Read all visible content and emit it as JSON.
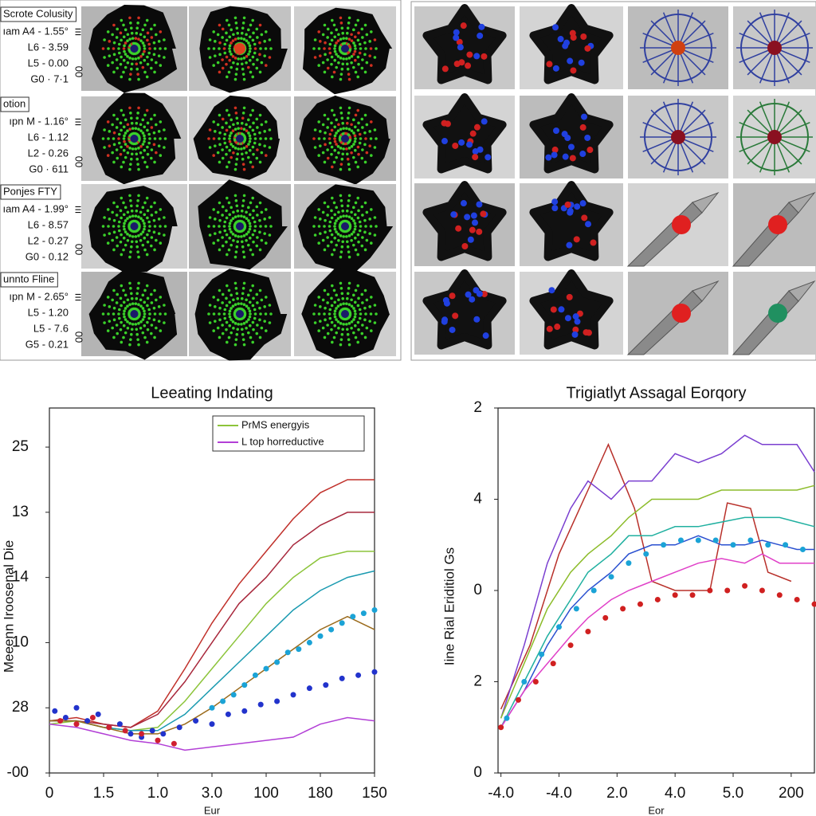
{
  "left_panel": {
    "rows": [
      {
        "title": "Scrote Colusity",
        "lines": [
          "ıam A4 - 1.55°",
          "L6 - 3.59",
          "L5 - 0.00"
        ],
        "code": "G0 · 7·1",
        "code_color": "#d02020",
        "side": [
          "ııı",
          "00"
        ]
      },
      {
        "title": "otion",
        "lines": [
          "ıpn M - 1.16°",
          "L6 - 1.12",
          "L2 - 0.26"
        ],
        "code": "G0 · 611",
        "code_color": "#d02050",
        "side": [
          "ııı",
          "00"
        ]
      },
      {
        "title": "Ponjes FTY",
        "lines": [
          "ıam A4 - 1.99°",
          "L6 - 8.57",
          "L2 - 0.27"
        ],
        "code": "G0 - 0.12",
        "code_color": "#c8b400",
        "side": [
          "ııı",
          "00"
        ]
      },
      {
        "title": "unnto Fline",
        "lines": [
          "ıpn M - 2.65°",
          "L5 - 1.20",
          "L5 - 7.6"
        ],
        "code": "G5 - 0.21",
        "code_color": "#10a0c0",
        "side": [
          "ııı",
          "00"
        ]
      }
    ]
  },
  "chart_data": [
    {
      "type": "line",
      "title": "Leeating Indating",
      "xlabel": "Eur",
      "ylabel": "Meeenn Iroosenal Die",
      "xlim": [
        0,
        6
      ],
      "ylim": [
        0,
        5.6
      ],
      "xticks": [
        0,
        {
          "value": 1,
          "label": "1.5"
        },
        {
          "value": 2,
          "label": "1.0"
        },
        {
          "value": 3,
          "label": "3.0"
        },
        {
          "value": 4,
          "label": "100"
        },
        {
          "value": 5,
          "label": "180"
        },
        {
          "value": 6,
          "label": "150"
        }
      ],
      "yticks": [
        {
          "value": 0,
          "label": "-00"
        },
        {
          "value": 1,
          "label": "28"
        },
        {
          "value": 2,
          "label": "10"
        },
        {
          "value": 3,
          "label": "14"
        },
        {
          "value": 4,
          "label": "13"
        },
        {
          "value": 5,
          "label": "25"
        }
      ],
      "legend": "upper right",
      "x": [
        0,
        0.5,
        1,
        1.5,
        2,
        2.5,
        3,
        3.5,
        4,
        4.5,
        5,
        5.5,
        6
      ],
      "series": [
        {
          "color": "#c0302a",
          "values": [
            0.8,
            0.85,
            0.75,
            0.7,
            0.95,
            1.6,
            2.3,
            2.9,
            3.4,
            3.9,
            4.3,
            4.5,
            4.5
          ]
        },
        {
          "color": "#a8283c",
          "values": [
            0.8,
            0.8,
            0.75,
            0.7,
            0.9,
            1.4,
            2.0,
            2.6,
            3.0,
            3.5,
            3.8,
            4.0,
            4.0
          ]
        },
        {
          "name": "PrMS energyis",
          "color": "#8cc43a",
          "values": [
            0.75,
            0.8,
            0.7,
            0.65,
            0.7,
            1.1,
            1.6,
            2.1,
            2.6,
            3.0,
            3.3,
            3.4,
            3.4
          ]
        },
        {
          "color": "#1a9ab0",
          "values": [
            0.8,
            0.8,
            0.7,
            0.65,
            0.65,
            0.9,
            1.3,
            1.7,
            2.1,
            2.5,
            2.8,
            3.0,
            3.1
          ]
        },
        {
          "color": "#9a6a1a",
          "values": [
            0.8,
            0.8,
            0.7,
            0.6,
            0.6,
            0.75,
            1.0,
            1.3,
            1.6,
            1.9,
            2.2,
            2.4,
            2.2
          ]
        },
        {
          "name": "L top horreductive",
          "color": "#b23fd6",
          "values": [
            0.75,
            0.7,
            0.6,
            0.5,
            0.45,
            0.35,
            0.4,
            0.45,
            0.5,
            0.55,
            0.75,
            0.85,
            0.8
          ]
        },
        {
          "type": "scatter",
          "color": "#2233cc",
          "x": [
            0.1,
            0.3,
            0.5,
            0.7,
            0.9,
            1.1,
            1.3,
            1.5,
            1.7,
            1.9,
            2.1,
            2.4,
            2.7,
            3.0,
            3.3,
            3.6,
            3.9,
            4.2,
            4.5,
            4.8,
            5.1,
            5.4,
            5.7,
            6.0
          ],
          "values": [
            0.95,
            0.85,
            1.0,
            0.8,
            0.9,
            0.7,
            0.75,
            0.6,
            0.55,
            0.65,
            0.6,
            0.7,
            0.8,
            0.75,
            0.9,
            0.95,
            1.05,
            1.1,
            1.2,
            1.3,
            1.35,
            1.45,
            1.5,
            1.55
          ]
        },
        {
          "type": "scatter",
          "color": "#1ba3d6",
          "x": [
            3.0,
            3.2,
            3.4,
            3.6,
            3.8,
            4.0,
            4.2,
            4.4,
            4.6,
            4.8,
            5.0,
            5.2,
            5.4,
            5.6,
            5.8,
            6.0
          ],
          "values": [
            1.0,
            1.1,
            1.2,
            1.35,
            1.5,
            1.6,
            1.7,
            1.85,
            1.9,
            2.0,
            2.1,
            2.2,
            2.3,
            2.4,
            2.45,
            2.5
          ]
        },
        {
          "type": "scatter",
          "color": "#d02030",
          "x": [
            0.2,
            0.5,
            0.8,
            1.1,
            1.4,
            1.7,
            2.0,
            2.3
          ],
          "values": [
            0.8,
            0.75,
            0.85,
            0.7,
            0.65,
            0.6,
            0.5,
            0.45
          ]
        }
      ]
    },
    {
      "type": "line",
      "title": "Trigiatlyt Assagal Eorqory",
      "xlabel": "Eor",
      "ylabel": "Iine Rial Eriditiol Gs",
      "xlim": [
        -0.05,
        5.4
      ],
      "ylim": [
        0,
        4
      ],
      "xticks": [
        {
          "value": 0,
          "label": "-4.0"
        },
        {
          "value": 1,
          "label": "-4.0"
        },
        {
          "value": 2,
          "label": "2.0"
        },
        {
          "value": 3,
          "label": "4.0"
        },
        {
          "value": 4,
          "label": "5.0"
        },
        {
          "value": 5,
          "label": "200"
        }
      ],
      "yticks": [
        0,
        {
          "value": 1,
          "label": "2"
        },
        {
          "value": 2,
          "label": "0"
        },
        {
          "value": 3,
          "label": "4"
        },
        {
          "value": 4,
          "label": "2"
        }
      ],
      "x": [
        0,
        0.4,
        0.8,
        1.2,
        1.5,
        1.9,
        2.2,
        2.6,
        3.0,
        3.4,
        3.8,
        4.2,
        4.5,
        4.8,
        5.1,
        5.4
      ],
      "series": [
        {
          "color": "#b8302a",
          "x": [
            0,
            0.5,
            1,
            1.5,
            1.85,
            2.3,
            2.6,
            3.0,
            3.6,
            3.9,
            4.3,
            4.6,
            5.0
          ],
          "values": [
            0.7,
            1.4,
            2.4,
            3.1,
            3.6,
            2.9,
            2.1,
            2.0,
            2.0,
            2.96,
            2.9,
            2.2,
            2.1
          ]
        },
        {
          "color": "#7a3fd0",
          "values": [
            0.6,
            1.4,
            2.3,
            2.9,
            3.2,
            3.0,
            3.2,
            3.2,
            3.5,
            3.4,
            3.5,
            3.7,
            3.6,
            3.6,
            3.6,
            3.3
          ]
        },
        {
          "color": "#8cbc2a",
          "values": [
            0.6,
            1.2,
            1.8,
            2.2,
            2.4,
            2.6,
            2.8,
            3.0,
            3.0,
            3.0,
            3.1,
            3.1,
            3.1,
            3.1,
            3.1,
            3.15
          ]
        },
        {
          "color": "#20b0a0",
          "values": [
            0.5,
            1.0,
            1.5,
            1.9,
            2.2,
            2.4,
            2.6,
            2.6,
            2.7,
            2.7,
            2.75,
            2.8,
            2.8,
            2.8,
            2.75,
            2.7
          ]
        },
        {
          "color": "#2a50d0",
          "values": [
            0.5,
            0.9,
            1.4,
            1.8,
            2.0,
            2.2,
            2.4,
            2.5,
            2.5,
            2.6,
            2.5,
            2.5,
            2.55,
            2.5,
            2.45,
            2.45
          ]
        },
        {
          "color": "#e040c8",
          "values": [
            0.5,
            0.9,
            1.2,
            1.5,
            1.7,
            1.9,
            2.0,
            2.1,
            2.2,
            2.3,
            2.35,
            2.3,
            2.4,
            2.3,
            2.3,
            2.3
          ]
        },
        {
          "type": "scatter",
          "color": "#d02020",
          "x": [
            0,
            0.3,
            0.6,
            0.9,
            1.2,
            1.5,
            1.8,
            2.1,
            2.4,
            2.7,
            3.0,
            3.3,
            3.6,
            3.9,
            4.2,
            4.5,
            4.8,
            5.1,
            5.4
          ],
          "values": [
            0.5,
            0.8,
            1.0,
            1.2,
            1.4,
            1.55,
            1.7,
            1.8,
            1.85,
            1.9,
            1.95,
            1.95,
            2.0,
            2.0,
            2.05,
            2.0,
            1.95,
            1.9,
            1.85
          ]
        },
        {
          "type": "scatter",
          "color": "#1ba3d6",
          "x": [
            0.1,
            0.4,
            0.7,
            1.0,
            1.3,
            1.6,
            1.9,
            2.2,
            2.5,
            2.8,
            3.1,
            3.4,
            3.7,
            4.0,
            4.3,
            4.6,
            4.9,
            5.2
          ],
          "values": [
            0.6,
            1.0,
            1.3,
            1.6,
            1.8,
            2.0,
            2.15,
            2.3,
            2.4,
            2.5,
            2.55,
            2.55,
            2.55,
            2.5,
            2.55,
            2.5,
            2.5,
            2.45
          ]
        }
      ]
    }
  ]
}
